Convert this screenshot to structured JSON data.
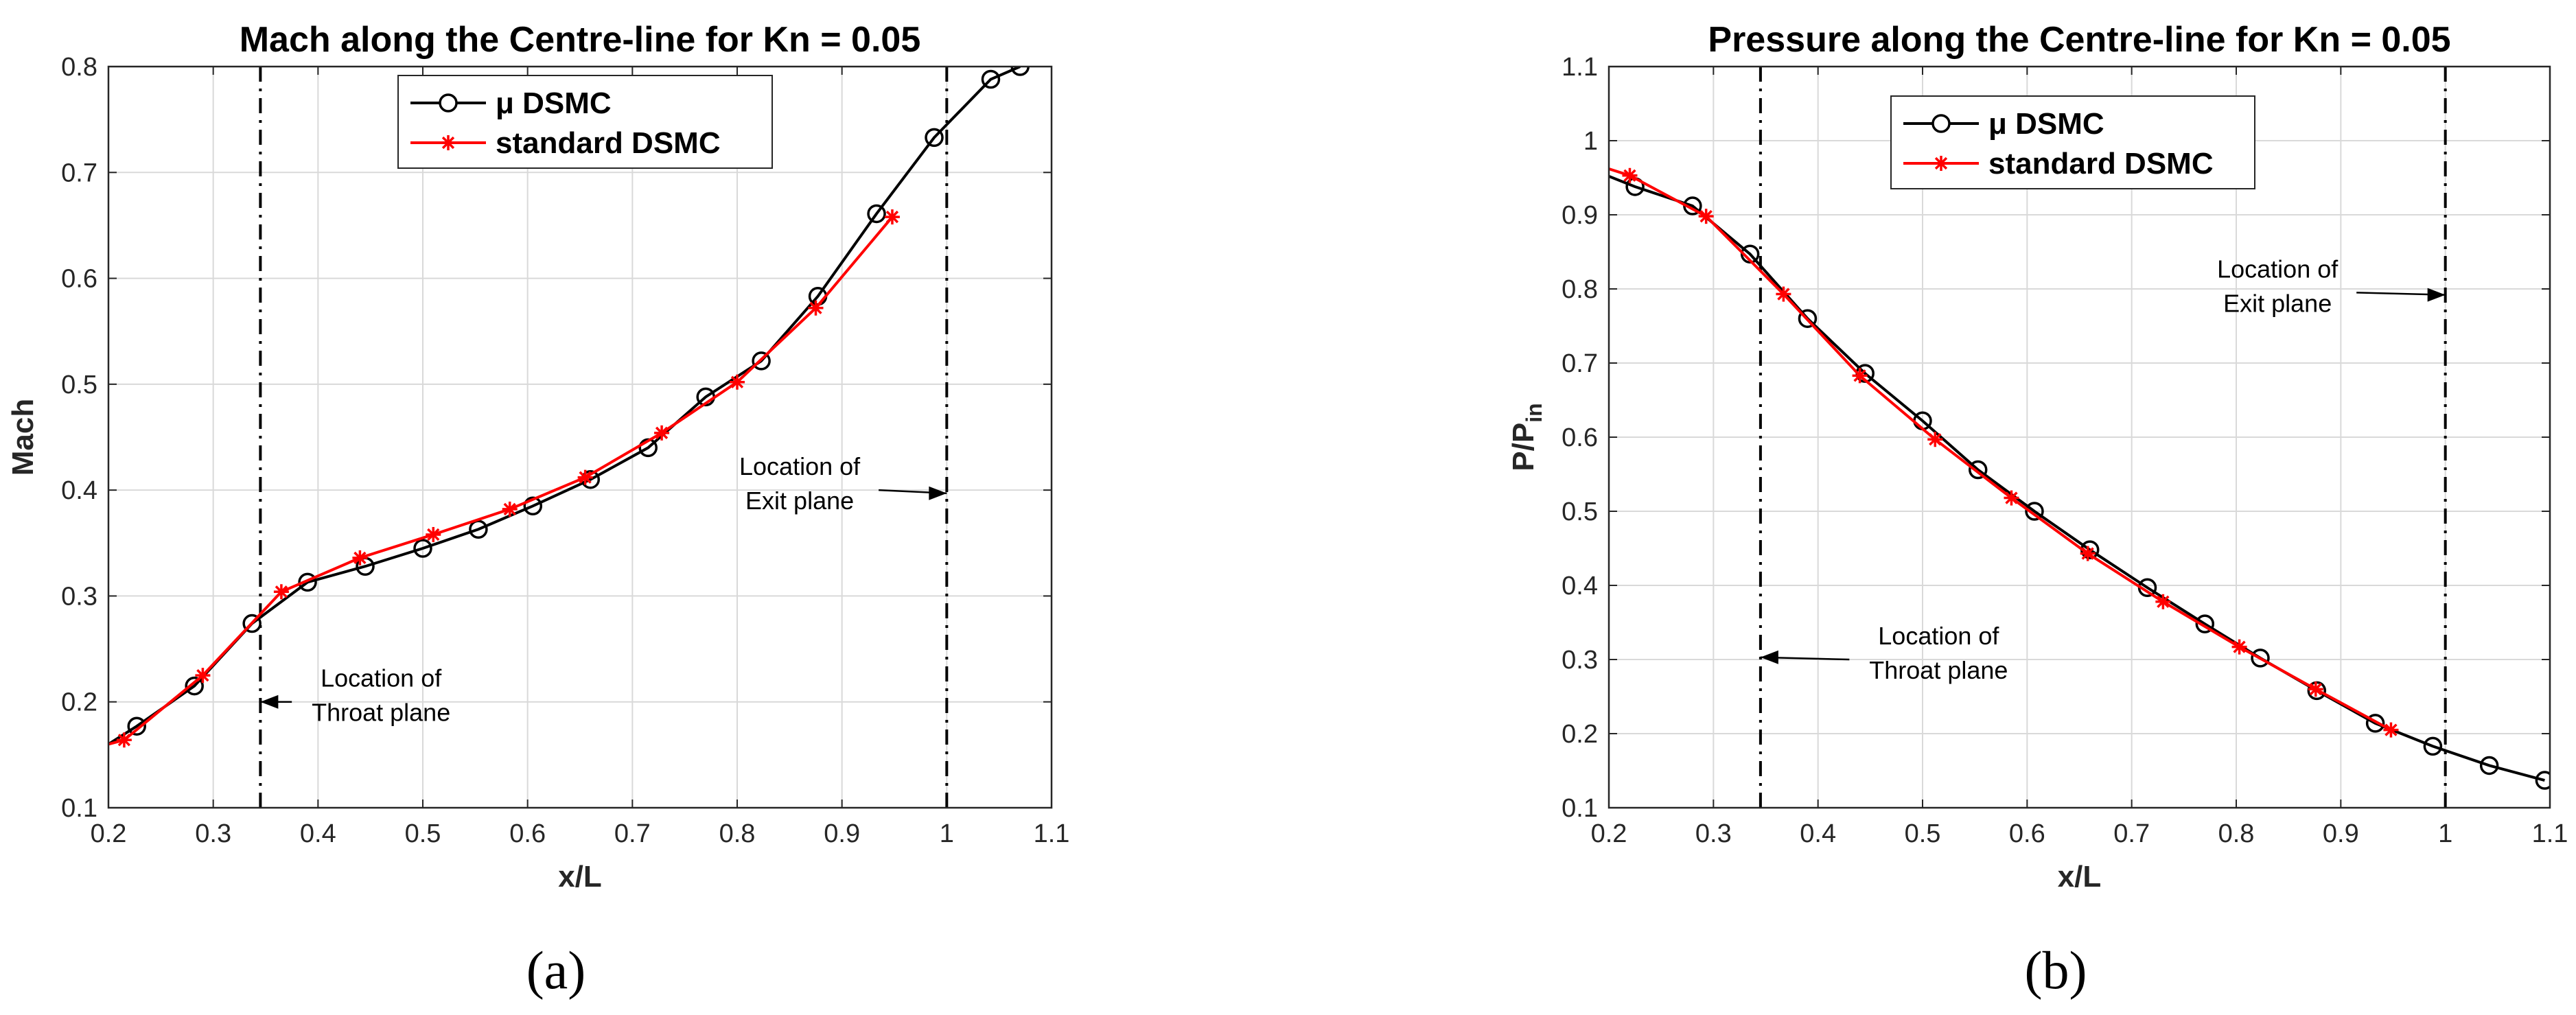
{
  "panel_labels": [
    "(a)",
    "(b)"
  ],
  "colors": {
    "mu_dsmc": "#000000",
    "standard_dsmc": "#ff0000",
    "exit_line": "#000000"
  },
  "chart_data": [
    {
      "type": "line",
      "title": "Mach along the Centre-line for Kn = 0.05",
      "xlabel": "x/L",
      "ylabel": "Mach",
      "xlim": [
        0.2,
        1.1
      ],
      "ylim": [
        0.1,
        0.8
      ],
      "xticks": [
        "0.2",
        "0.3",
        "0.4",
        "0.5",
        "0.6",
        "0.7",
        "0.8",
        "0.9",
        "1",
        "1.1"
      ],
      "yticks": [
        "0.1",
        "0.2",
        "0.3",
        "0.4",
        "0.5",
        "0.6",
        "0.7",
        "0.8"
      ],
      "grid": true,
      "legend_position": "top-center",
      "series": [
        {
          "name": "μ DSMC",
          "marker": "circle",
          "x": [
            0.2,
            0.227,
            0.282,
            0.337,
            0.39,
            0.445,
            0.5,
            0.553,
            0.605,
            0.66,
            0.715,
            0.77,
            0.823,
            0.877,
            0.933,
            0.988,
            1.042,
            1.07
          ],
          "y": [
            0.16,
            0.177,
            0.215,
            0.274,
            0.313,
            0.328,
            0.345,
            0.363,
            0.385,
            0.41,
            0.44,
            0.488,
            0.522,
            0.583,
            0.661,
            0.733,
            0.788,
            0.8
          ]
        },
        {
          "name": "standard DSMC",
          "marker": "star",
          "x": [
            0.2,
            0.215,
            0.29,
            0.365,
            0.44,
            0.51,
            0.583,
            0.655,
            0.728,
            0.8,
            0.875,
            0.948
          ],
          "y": [
            0.16,
            0.164,
            0.225,
            0.304,
            0.336,
            0.358,
            0.382,
            0.412,
            0.454,
            0.502,
            0.572,
            0.658
          ]
        }
      ],
      "vlines": [
        0.345,
        1.0
      ],
      "annotations": [
        {
          "text": [
            "Location of",
            "Throat plane"
          ],
          "arrow_to": [
            0.345,
            0.2
          ],
          "arrow_from": [
            0.375,
            0.2
          ]
        },
        {
          "text": [
            "Location of",
            "Exit plane"
          ],
          "arrow_to": [
            1.0,
            0.397
          ],
          "arrow_from": [
            0.935,
            0.4
          ]
        }
      ]
    },
    {
      "type": "line",
      "title": "Pressure along the Centre-line for Kn = 0.05",
      "xlabel": "x/L",
      "ylabel": "P/P",
      "ylabel_subscript": "in",
      "xlim": [
        0.2,
        1.1
      ],
      "ylim": [
        0.1,
        1.1
      ],
      "xticks": [
        "0.2",
        "0.3",
        "0.4",
        "0.5",
        "0.6",
        "0.7",
        "0.8",
        "0.9",
        "1",
        "1.1"
      ],
      "yticks": [
        "0.1",
        "0.2",
        "0.3",
        "0.4",
        "0.5",
        "0.6",
        "0.7",
        "0.8",
        "0.9",
        "1",
        "1.1"
      ],
      "grid": true,
      "legend_position": "top-center",
      "series": [
        {
          "name": "μ DSMC",
          "marker": "circle",
          "x": [
            0.2,
            0.225,
            0.28,
            0.335,
            0.39,
            0.445,
            0.5,
            0.553,
            0.607,
            0.66,
            0.715,
            0.77,
            0.823,
            0.877,
            0.933,
            0.988,
            1.042,
            1.095
          ],
          "y": [
            0.952,
            0.938,
            0.912,
            0.847,
            0.76,
            0.686,
            0.622,
            0.556,
            0.5,
            0.448,
            0.397,
            0.348,
            0.302,
            0.258,
            0.214,
            0.183,
            0.157,
            0.137
          ]
        },
        {
          "name": "standard DSMC",
          "marker": "star",
          "x": [
            0.2,
            0.22,
            0.293,
            0.367,
            0.44,
            0.512,
            0.585,
            0.658,
            0.73,
            0.803,
            0.876,
            0.948
          ],
          "y": [
            0.962,
            0.953,
            0.898,
            0.793,
            0.683,
            0.597,
            0.518,
            0.443,
            0.378,
            0.317,
            0.26,
            0.205
          ]
        }
      ],
      "vlines": [
        0.345,
        1.0
      ],
      "annotations": [
        {
          "text": [
            "Location of",
            "Throat plane"
          ],
          "arrow_to": [
            0.345,
            0.303
          ],
          "arrow_from": [
            0.43,
            0.3
          ]
        },
        {
          "text": [
            "Location of",
            "Exit plane"
          ],
          "arrow_to": [
            1.0,
            0.792
          ],
          "arrow_from": [
            0.915,
            0.795
          ]
        }
      ]
    }
  ]
}
